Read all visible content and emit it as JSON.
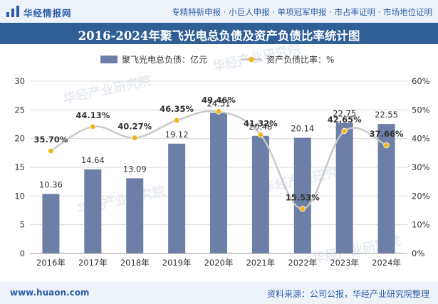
{
  "header": {
    "brand": "华经情报网",
    "tagline": "专精特新申报 · 小巨人申报 · 单项冠军申报 · 市占率证明 · 市场地位证明"
  },
  "chart_data": {
    "type": "bar",
    "title": "2016-2024年聚飞光电总负债及资产负债比率统计图",
    "categories": [
      "2016年",
      "2017年",
      "2018年",
      "2019年",
      "2020年",
      "2021年",
      "2022年",
      "2023年",
      "2024年"
    ],
    "series": [
      {
        "name": "聚飞光电总负债：亿元",
        "type": "bar",
        "values": [
          10.36,
          14.64,
          13.09,
          19.12,
          24.51,
          20.48,
          20.14,
          22.75,
          22.55
        ],
        "labels": [
          "10.36",
          "14.64",
          "13.09",
          "19.12",
          "24.51",
          "20.48",
          "20.14",
          "22.75",
          "22.55"
        ],
        "color": "#6c7fa6"
      },
      {
        "name": "资产负债比率：%",
        "type": "line",
        "axis": "right",
        "values": [
          35.7,
          44.13,
          40.27,
          46.35,
          49.46,
          41.32,
          15.53,
          42.65,
          37.66
        ],
        "labels": [
          "35.70%",
          "44.13%",
          "40.27%",
          "46.35%",
          "49.46%",
          "41.32%",
          "15.53%",
          "42.65%",
          "37.66%"
        ],
        "color": "#f1b515"
      }
    ],
    "y_left": {
      "min": 0,
      "max": 30,
      "ticks": [
        "0",
        "5",
        "10",
        "15",
        "20",
        "25",
        "30"
      ]
    },
    "y_right": {
      "min": 0,
      "max": 60,
      "ticks": [
        "0%",
        "10%",
        "20%",
        "30%",
        "40%",
        "50%",
        "60%"
      ]
    },
    "grid": true,
    "legend_position": "top-center",
    "watermark": "华经产业研究院"
  },
  "footer": {
    "site": "www.huaon.com",
    "source": "资料来源：公司公报，华经产业研究院整理"
  }
}
